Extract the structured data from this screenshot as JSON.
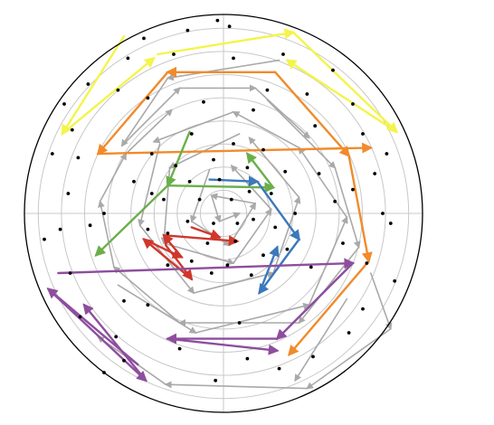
{
  "figure": {
    "colors": {
      "background": "#ffffff",
      "boundary": "#000000",
      "grid": "#c8c8c8",
      "dots": "#000000"
    },
    "rings": 8,
    "spokes": 4,
    "paths": [
      {
        "id": "yellow-top",
        "color": "#f4f44a",
        "width": 2.4,
        "points": [
          [
            -0.33,
            0.8
          ],
          [
            0.35,
            0.91
          ],
          [
            0.87,
            0.41
          ],
          [
            0.32,
            0.77
          ]
        ]
      },
      {
        "id": "yellow-left",
        "color": "#f4f44a",
        "width": 2.4,
        "points": [
          [
            -0.5,
            0.89
          ],
          [
            -0.81,
            0.4
          ],
          [
            -0.35,
            0.78
          ]
        ]
      },
      {
        "id": "orange-top",
        "color": "#f08b2c",
        "width": 2.4,
        "points": [
          [
            0.26,
            0.71
          ],
          [
            -0.28,
            0.71
          ],
          [
            -0.63,
            0.3
          ],
          [
            0.74,
            0.33
          ]
        ]
      },
      {
        "id": "orange-right",
        "color": "#f08b2c",
        "width": 2.4,
        "points": [
          [
            0.26,
            0.71
          ],
          [
            0.63,
            0.29
          ],
          [
            0.73,
            -0.24
          ],
          [
            0.33,
            -0.71
          ]
        ]
      },
      {
        "id": "green",
        "color": "#6aaf4a",
        "width": 2.4,
        "points": [
          [
            -0.17,
            0.41
          ],
          [
            -0.28,
            0.14
          ],
          [
            0.25,
            0.13
          ],
          [
            0.12,
            0.3
          ]
        ]
      },
      {
        "id": "green-left",
        "color": "#6aaf4a",
        "width": 2.4,
        "points": [
          [
            -0.28,
            0.14
          ],
          [
            -0.64,
            -0.21
          ]
        ]
      },
      {
        "id": "blue",
        "color": "#3b78bc",
        "width": 2.4,
        "points": [
          [
            -0.07,
            0.17
          ],
          [
            0.17,
            0.16
          ],
          [
            0.38,
            -0.13
          ],
          [
            0.18,
            -0.4
          ],
          [
            0.27,
            -0.17
          ]
        ]
      },
      {
        "id": "red",
        "color": "#d0372c",
        "width": 2.4,
        "points": [
          [
            -0.29,
            -0.16
          ],
          [
            -0.16,
            -0.33
          ],
          [
            -0.4,
            -0.13
          ],
          [
            -0.21,
            -0.22
          ],
          [
            -0.3,
            -0.11
          ],
          [
            0.07,
            -0.14
          ]
        ]
      },
      {
        "id": "red-inner",
        "color": "#d0372c",
        "width": 2.4,
        "points": [
          [
            -0.16,
            -0.07
          ],
          [
            -0.02,
            -0.12
          ]
        ]
      },
      {
        "id": "purple-top",
        "color": "#8e4e9e",
        "width": 2.4,
        "points": [
          [
            -0.83,
            -0.3
          ],
          [
            0.65,
            -0.25
          ],
          [
            0.27,
            -0.63
          ],
          [
            -0.28,
            -0.63
          ],
          [
            0.27,
            -0.69
          ]
        ]
      },
      {
        "id": "purple-left",
        "color": "#8e4e9e",
        "width": 2.4,
        "points": [
          [
            -0.43,
            -0.76
          ],
          [
            -0.88,
            -0.38
          ],
          [
            -0.39,
            -0.84
          ],
          [
            -0.7,
            -0.46
          ]
        ]
      },
      {
        "id": "gray-1",
        "color": "#a9a9a9",
        "width": 1.6,
        "points": [
          [
            0.28,
            0.77
          ],
          [
            -0.28,
            0.68
          ],
          [
            -0.51,
            0.34
          ],
          [
            -0.22,
            0.63
          ],
          [
            0.16,
            0.63
          ],
          [
            0.43,
            0.38
          ]
        ]
      },
      {
        "id": "gray-2",
        "color": "#a9a9a9",
        "width": 1.6,
        "points": [
          [
            0.22,
            0.57
          ],
          [
            0.56,
            0.23
          ],
          [
            0.68,
            -0.17
          ],
          [
            0.38,
            -0.55
          ],
          [
            -0.22,
            -0.55
          ],
          [
            -0.55,
            -0.27
          ],
          [
            -0.62,
            0.06
          ],
          [
            -0.49,
            0.3
          ],
          [
            -0.26,
            0.52
          ]
        ]
      },
      {
        "id": "gray-3",
        "color": "#a9a9a9",
        "width": 1.6,
        "points": [
          [
            -0.53,
            -0.36
          ],
          [
            -0.14,
            -0.6
          ],
          [
            0.43,
            -0.46
          ],
          [
            0.62,
            -0.02
          ],
          [
            0.38,
            0.33
          ],
          [
            0.05,
            0.51
          ],
          [
            -0.35,
            0.36
          ]
        ]
      },
      {
        "id": "gray-4",
        "color": "#a9a9a9",
        "width": 1.6,
        "points": [
          [
            -0.32,
            0.35
          ],
          [
            -0.42,
            -0.06
          ],
          [
            -0.15,
            -0.4
          ],
          [
            0.25,
            -0.3
          ],
          [
            0.38,
            0.08
          ],
          [
            0.13,
            0.38
          ]
        ]
      },
      {
        "id": "gray-5",
        "color": "#a9a9a9",
        "width": 1.6,
        "points": [
          [
            0.08,
            0.4
          ],
          [
            -0.27,
            0.23
          ],
          [
            -0.3,
            -0.15
          ],
          [
            0.05,
            -0.25
          ],
          [
            0.24,
            0.02
          ],
          [
            0.04,
            0.24
          ]
        ]
      },
      {
        "id": "gray-6",
        "color": "#a9a9a9",
        "width": 1.6,
        "points": [
          [
            -0.07,
            0.22
          ],
          [
            -0.16,
            -0.04
          ],
          [
            0.03,
            -0.16
          ],
          [
            0.16,
            0.05
          ],
          [
            -0.06,
            0.09
          ],
          [
            -0.02,
            -0.04
          ],
          [
            0.08,
            0.0
          ]
        ]
      },
      {
        "id": "gray-7",
        "color": "#a9a9a9",
        "width": 1.6,
        "points": [
          [
            0.74,
            -0.3
          ],
          [
            0.84,
            -0.58
          ],
          [
            0.42,
            -0.88
          ],
          [
            -0.29,
            -0.86
          ],
          [
            -0.63,
            -0.62
          ]
        ]
      },
      {
        "id": "gray-8",
        "color": "#a9a9a9",
        "width": 1.6,
        "points": [
          [
            0.62,
            -0.43
          ],
          [
            0.36,
            -0.84
          ]
        ]
      }
    ],
    "dots": [
      [
        -0.18,
        0.92
      ],
      [
        -0.03,
        0.97
      ],
      [
        0.03,
        0.94
      ],
      [
        -0.4,
        0.88
      ],
      [
        -0.25,
        0.8
      ],
      [
        0.05,
        0.78
      ],
      [
        0.3,
        0.8
      ],
      [
        0.55,
        0.72
      ],
      [
        -0.48,
        0.78
      ],
      [
        -0.68,
        0.65
      ],
      [
        -0.8,
        0.55
      ],
      [
        -0.53,
        0.62
      ],
      [
        -0.38,
        0.58
      ],
      [
        0.22,
        0.62
      ],
      [
        0.42,
        0.6
      ],
      [
        0.65,
        0.55
      ],
      [
        -0.76,
        0.42
      ],
      [
        -0.86,
        0.3
      ],
      [
        0.7,
        0.4
      ],
      [
        0.76,
        0.2
      ],
      [
        0.82,
        0.3
      ],
      [
        -0.73,
        0.28
      ],
      [
        -0.78,
        0.1
      ],
      [
        0.8,
        0.0
      ],
      [
        -0.82,
        -0.08
      ],
      [
        0.84,
        -0.05
      ],
      [
        -0.9,
        -0.13
      ],
      [
        0.86,
        -0.34
      ],
      [
        -0.77,
        -0.3
      ],
      [
        -0.72,
        -0.52
      ],
      [
        0.7,
        -0.48
      ],
      [
        -0.54,
        -0.62
      ],
      [
        0.63,
        -0.6
      ],
      [
        -0.5,
        -0.74
      ],
      [
        0.45,
        -0.72
      ],
      [
        -0.22,
        -0.68
      ],
      [
        0.28,
        -0.78
      ],
      [
        -0.04,
        -0.84
      ],
      [
        0.12,
        -0.73
      ],
      [
        -0.6,
        -0.8
      ],
      [
        0.72,
        -0.25
      ],
      [
        0.6,
        -0.15
      ],
      [
        0.56,
        0.06
      ],
      [
        -0.6,
        0.0
      ],
      [
        -0.45,
        0.16
      ],
      [
        -0.36,
        0.3
      ],
      [
        -0.16,
        0.4
      ],
      [
        0.05,
        0.35
      ],
      [
        0.2,
        0.32
      ],
      [
        0.31,
        0.21
      ],
      [
        0.36,
        0.0
      ],
      [
        0.32,
        -0.18
      ],
      [
        0.14,
        -0.31
      ],
      [
        -0.06,
        -0.3
      ],
      [
        -0.28,
        -0.26
      ],
      [
        -0.38,
        -0.08
      ],
      [
        -0.36,
        0.1
      ],
      [
        -0.24,
        0.24
      ],
      [
        -0.05,
        0.27
      ],
      [
        0.12,
        0.23
      ],
      [
        0.24,
        0.1
      ],
      [
        0.26,
        -0.07
      ],
      [
        0.2,
        -0.21
      ],
      [
        0.02,
        -0.26
      ],
      [
        -0.16,
        -0.24
      ],
      [
        -0.28,
        -0.1
      ],
      [
        -0.3,
        0.07
      ],
      [
        -0.17,
        0.16
      ],
      [
        -0.02,
        0.17
      ],
      [
        0.13,
        0.11
      ],
      [
        0.15,
        -0.03
      ],
      [
        0.06,
        -0.14
      ],
      [
        -0.08,
        -0.15
      ],
      [
        -0.18,
        -0.04
      ],
      [
        -0.12,
        0.07
      ],
      [
        0.04,
        0.07
      ],
      [
        0.07,
        -0.05
      ],
      [
        -0.05,
        -0.05
      ],
      [
        0.44,
        -0.27
      ],
      [
        0.48,
        0.2
      ],
      [
        -0.5,
        -0.44
      ],
      [
        -0.38,
        -0.46
      ],
      [
        0.46,
        0.44
      ],
      [
        0.08,
        -0.55
      ],
      [
        -0.1,
        0.56
      ],
      [
        0.15,
        0.52
      ],
      [
        -0.67,
        -0.06
      ],
      [
        0.65,
        0.12
      ]
    ]
  }
}
